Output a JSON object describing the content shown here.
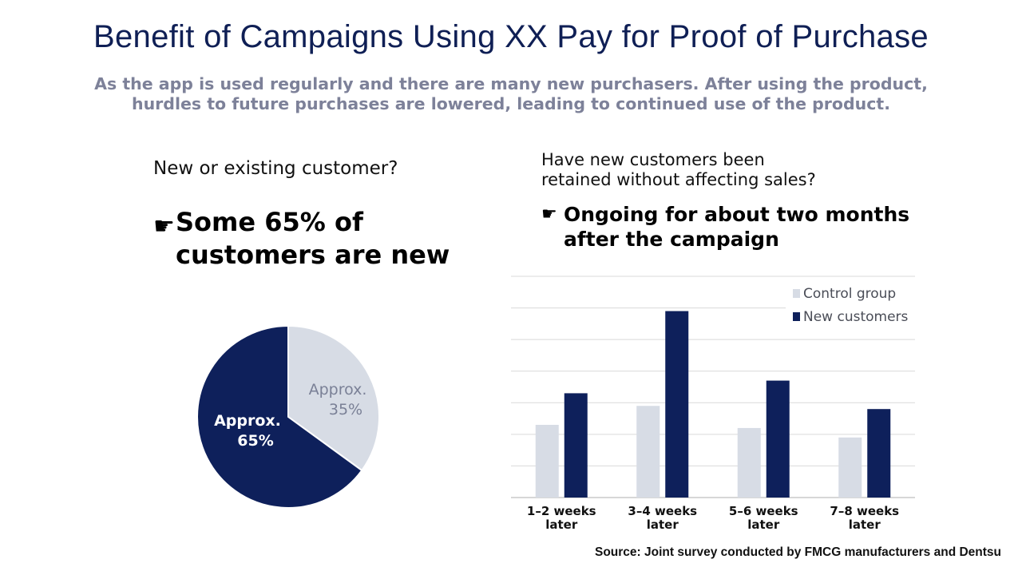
{
  "header": {
    "title": "Benefit of Campaigns Using XX Pay for Proof of Purchase",
    "subtitle_lines": [
      "As the app is used regularly and there are many new purchasers. After using the product,",
      "hurdles to future purchases are lowered, leading to continued use of the product."
    ]
  },
  "left_panel": {
    "question": "New or existing customer?",
    "point_icon": "pointing-hand-icon",
    "point_glyph": "☛",
    "point": "Some 65% of customers are new"
  },
  "right_panel": {
    "question_lines": [
      "Have new customers been",
      "retained without affecting sales?"
    ],
    "point_icon": "pointing-hand-icon",
    "point_glyph": "☛",
    "point": "Ongoing for about two months after the campaign"
  },
  "colors": {
    "navy": "#0e205b",
    "light": "#d7dce5",
    "grid": "#d9d9d9",
    "light_label": "#7a8096"
  },
  "chart_data": [
    {
      "type": "pie",
      "slices": [
        {
          "label_lines": [
            "Approx.",
            "35%"
          ],
          "value": 35,
          "color": "#d7dce5",
          "label_color": "#7a8096"
        },
        {
          "label_lines": [
            "Approx.",
            "65%"
          ],
          "value": 65,
          "color": "#0e205b",
          "label_color": "#ffffff"
        }
      ]
    },
    {
      "type": "bar",
      "categories": [
        [
          "1–2 weeks",
          "later"
        ],
        [
          "3–4 weeks",
          "later"
        ],
        [
          "5–6 weeks",
          "later"
        ],
        [
          "7–8 weeks",
          "later"
        ]
      ],
      "series": [
        {
          "name": "Control group",
          "values": [
            2.3,
            2.9,
            2.2,
            1.9
          ],
          "color": "#d7dce5"
        },
        {
          "name": "New customers",
          "values": [
            3.3,
            5.9,
            3.7,
            2.8
          ],
          "color": "#0e205b"
        }
      ],
      "ylim": [
        0,
        7
      ],
      "grid": true,
      "y_tick_labels": false,
      "legend_position": "top-right"
    }
  ],
  "source": "Source: Joint survey conducted by FMCG manufacturers and Dentsu"
}
